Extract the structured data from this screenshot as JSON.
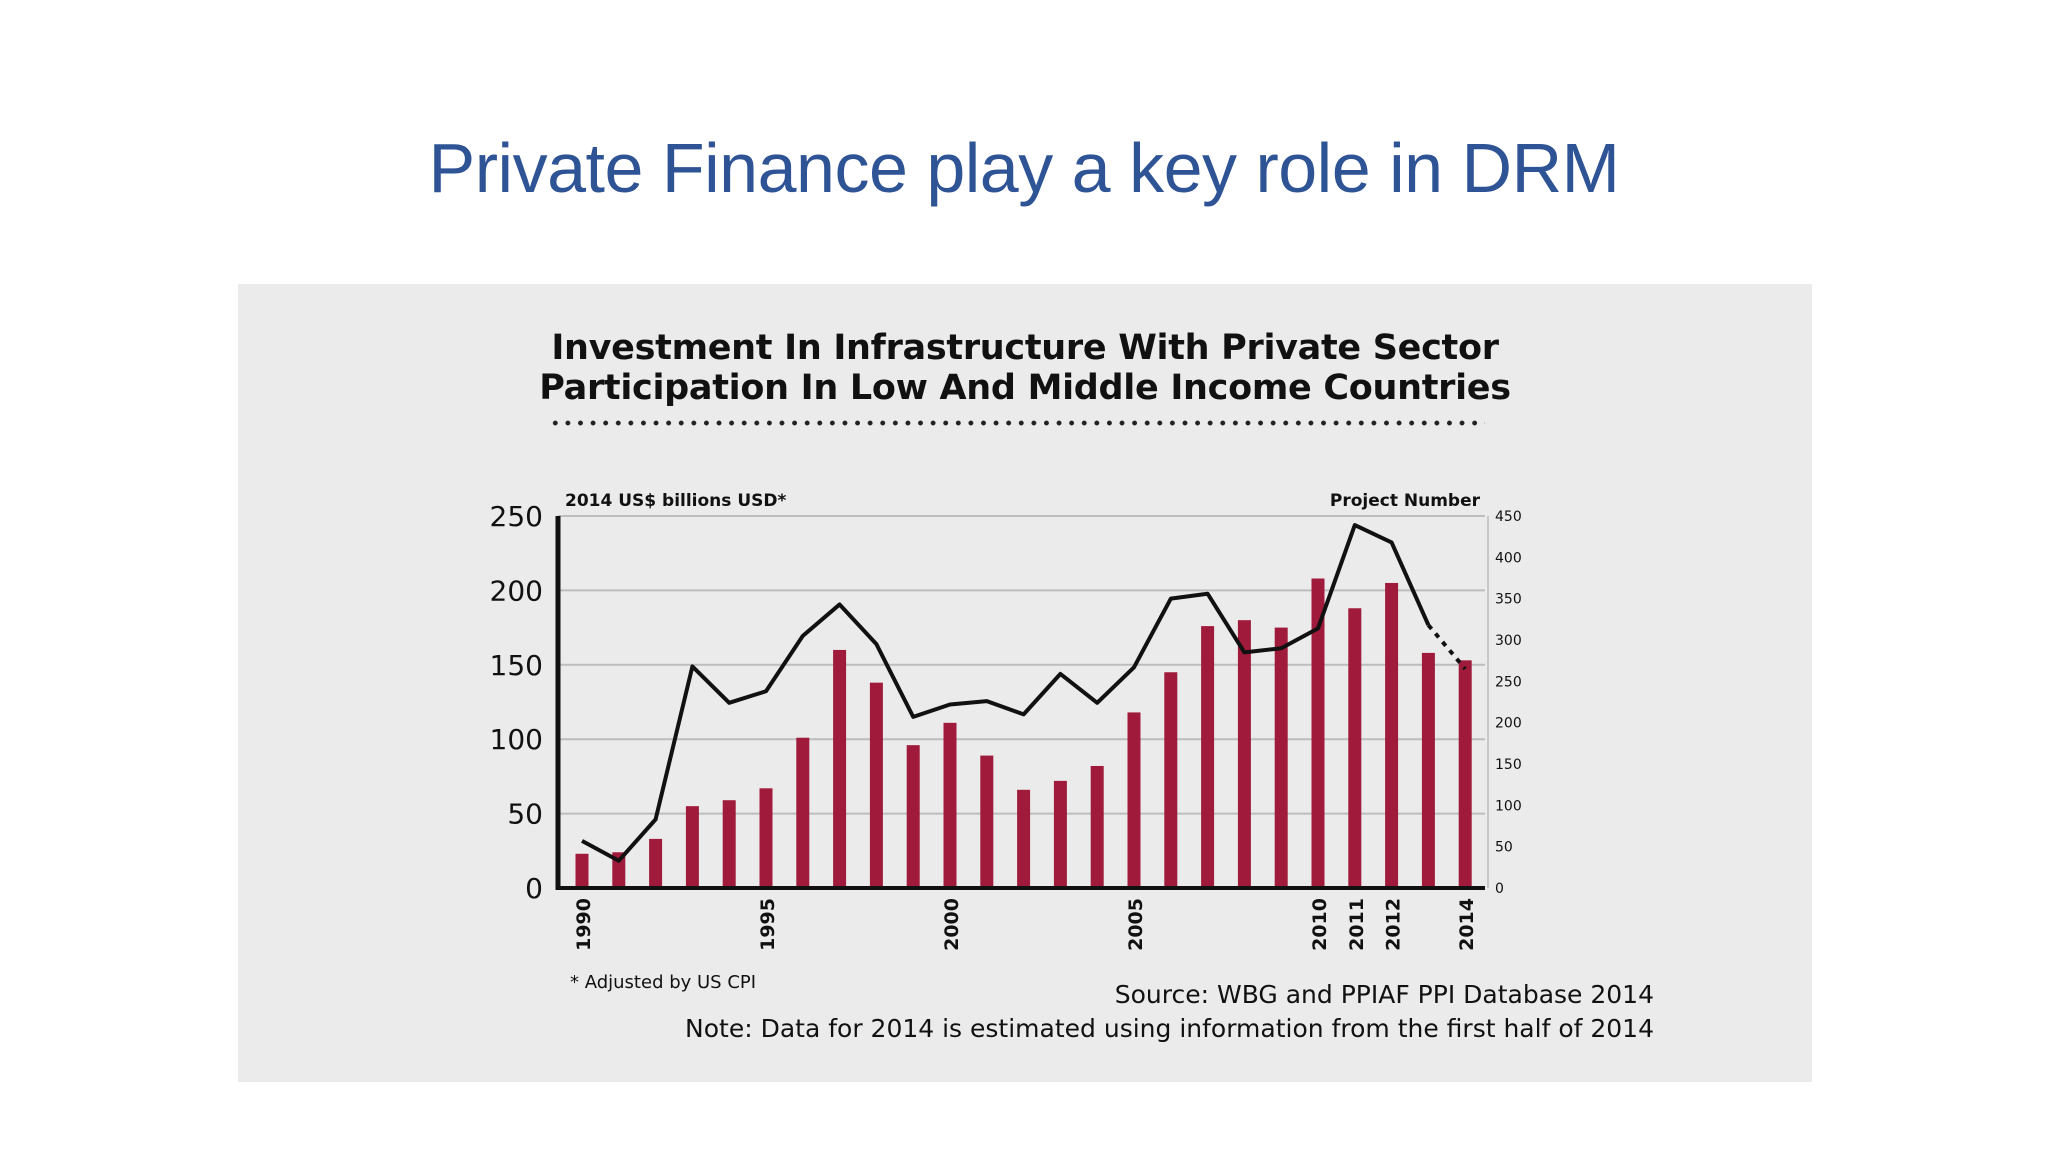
{
  "slide": {
    "title": "Private Finance play a key role in DRM"
  },
  "chart_data": {
    "type": "bar",
    "title": "Investment In Infrastructure With Private Sector Participation In Low And Middle Income Countries",
    "title_lines": [
      "Investment In Infrastructure With Private Sector",
      "Participation In Low And Middle Income Countries"
    ],
    "ylabel": "2014 US$ billions USD*",
    "y2label": "Project Number",
    "ylim": [
      0,
      250
    ],
    "y2lim": [
      0,
      450
    ],
    "yticks": [
      0,
      50,
      100,
      150,
      200,
      250
    ],
    "y2ticks": [
      0,
      50,
      100,
      150,
      200,
      250,
      300,
      350,
      400,
      450
    ],
    "xtick_labels": [
      "1990",
      "1995",
      "2000",
      "2005",
      "2010",
      "2011",
      "2012",
      "2014"
    ],
    "grid": true,
    "categories": [
      1990,
      1991,
      1992,
      1993,
      1994,
      1995,
      1996,
      1997,
      1998,
      1999,
      2000,
      2001,
      2002,
      2003,
      2004,
      2005,
      2006,
      2007,
      2008,
      2009,
      2010,
      2011,
      2012,
      2013,
      2014
    ],
    "series": [
      {
        "kind": "bar",
        "axis": "left",
        "color": "#a01b3b",
        "values": [
          23,
          24,
          33,
          55,
          59,
          67,
          101,
          160,
          138,
          96,
          111,
          89,
          66,
          72,
          82,
          118,
          145,
          176,
          180,
          175,
          208,
          188,
          205,
          158,
          153
        ]
      },
      {
        "kind": "line",
        "axis": "right",
        "color": "#111111",
        "estimated_from": 2013,
        "values": [
          57,
          33,
          83,
          268,
          224,
          238,
          305,
          343,
          295,
          207,
          222,
          226,
          210,
          259,
          224,
          267,
          350,
          356,
          285,
          290,
          314,
          439,
          418,
          318,
          265
        ]
      }
    ],
    "footnote": "* Adjusted by US CPI",
    "source": "Source:  WBG and PPIAF PPI Database 2014",
    "note": "Note: Data for 2014 is estimated using information from the first half of 2014"
  }
}
